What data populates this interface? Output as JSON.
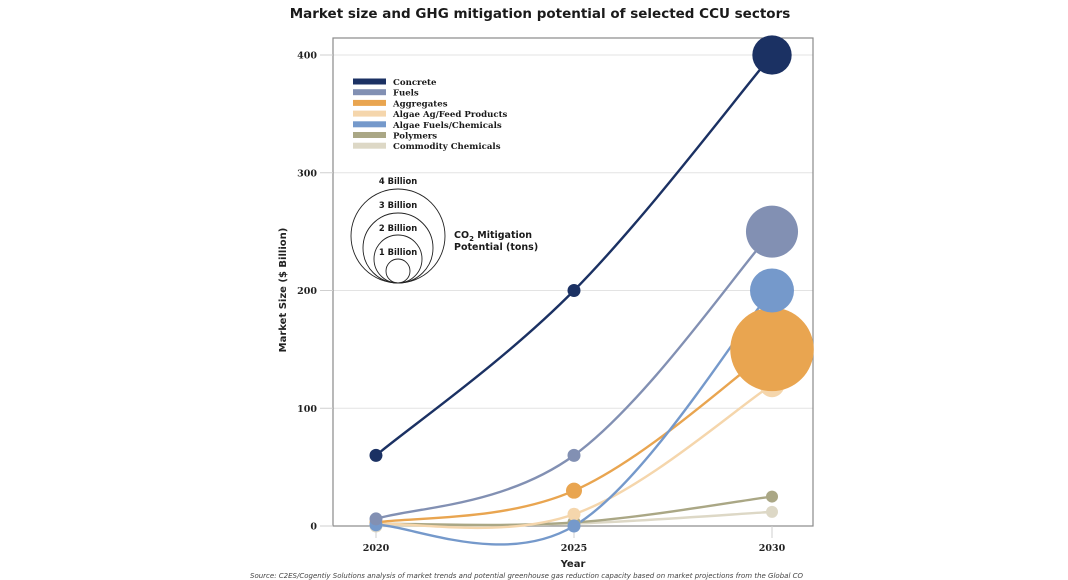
{
  "chart_data": {
    "type": "scatter",
    "subtype": "bubble-line",
    "title": "Market size and GHG mitigation potential of selected CCU sectors",
    "xlabel": "Year",
    "ylabel": "Market Size ($ Billion)",
    "x": [
      2020,
      2025,
      2030
    ],
    "x_ticks": [
      "2020",
      "2025",
      "2030"
    ],
    "y_ticks": [
      "0",
      "100",
      "200",
      "300",
      "400"
    ],
    "ylim": [
      0,
      420
    ],
    "grid": true,
    "legend_position": "top-left",
    "series": [
      {
        "name": "Concrete",
        "color": "#1b3163",
        "values": [
          60,
          200,
          400
        ],
        "bubble_2030_billion_tons": 0.8
      },
      {
        "name": "Fuels",
        "color": "#8290b3",
        "values": [
          6,
          60,
          250
        ],
        "bubble_2030_billion_tons": 1.4
      },
      {
        "name": "Aggregates",
        "color": "#e9a550",
        "values": [
          3,
          30,
          150
        ],
        "bubble_2030_billion_tons": 3.6
      },
      {
        "name": "Algae Ag/Feed Products",
        "color": "#f5d6ac",
        "values": [
          2,
          10,
          120
        ],
        "bubble_2030_billion_tons": 0.3
      },
      {
        "name": "Algae Fuels/Chemicals",
        "color": "#7599cb",
        "values": [
          1,
          0,
          200
        ],
        "bubble_2030_billion_tons": 1.0
      },
      {
        "name": "Polymers",
        "color": "#aaa785",
        "values": [
          2,
          3,
          25
        ],
        "bubble_2030_billion_tons": 0.07
      },
      {
        "name": "Commodity Chemicals",
        "color": "#ddd8c6",
        "values": [
          0,
          2,
          12
        ],
        "bubble_2030_billion_tons": 0.07
      }
    ],
    "size_legend": {
      "labels": [
        "4 Billion",
        "3 Billion",
        "2 Billion",
        "1 Billion"
      ],
      "values": [
        4,
        3,
        2,
        1
      ],
      "title_line1": "CO",
      "title_sub": "2",
      "title_line1_rest": " Mitigation",
      "title_line2": "Potential (tons)"
    },
    "source": "Source: C2ES/Cogentiy Solutions analysis of market trends and potential greenhouse gas reduction capacity based on market projections from the Global CO"
  }
}
